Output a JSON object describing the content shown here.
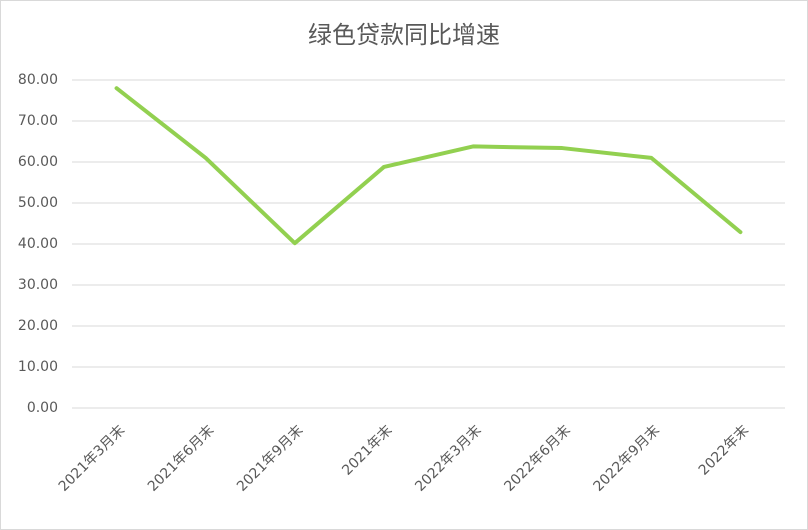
{
  "chart_data": {
    "type": "line",
    "title": "绿色贷款同比增速",
    "categories": [
      "2021年3月末",
      "2021年6月末",
      "2021年9月末",
      "2021年末",
      "2022年3月末",
      "2022年6月末",
      "2022年9月末",
      "2022年末"
    ],
    "values": [
      78.0,
      61.0,
      40.2,
      58.8,
      63.8,
      63.4,
      61.0,
      42.9
    ],
    "color": "#92d050",
    "ylim": [
      0,
      80
    ],
    "yticks": [
      {
        "value": 0,
        "label": "0.00"
      },
      {
        "value": 10,
        "label": "10.00"
      },
      {
        "value": 20,
        "label": "20.00"
      },
      {
        "value": 30,
        "label": "30.00"
      },
      {
        "value": 40,
        "label": "40.00"
      },
      {
        "value": 50,
        "label": "50.00"
      },
      {
        "value": 60,
        "label": "60.00"
      },
      {
        "value": 70,
        "label": "70.00"
      },
      {
        "value": 80,
        "label": "80.00"
      }
    ],
    "grid": true
  }
}
